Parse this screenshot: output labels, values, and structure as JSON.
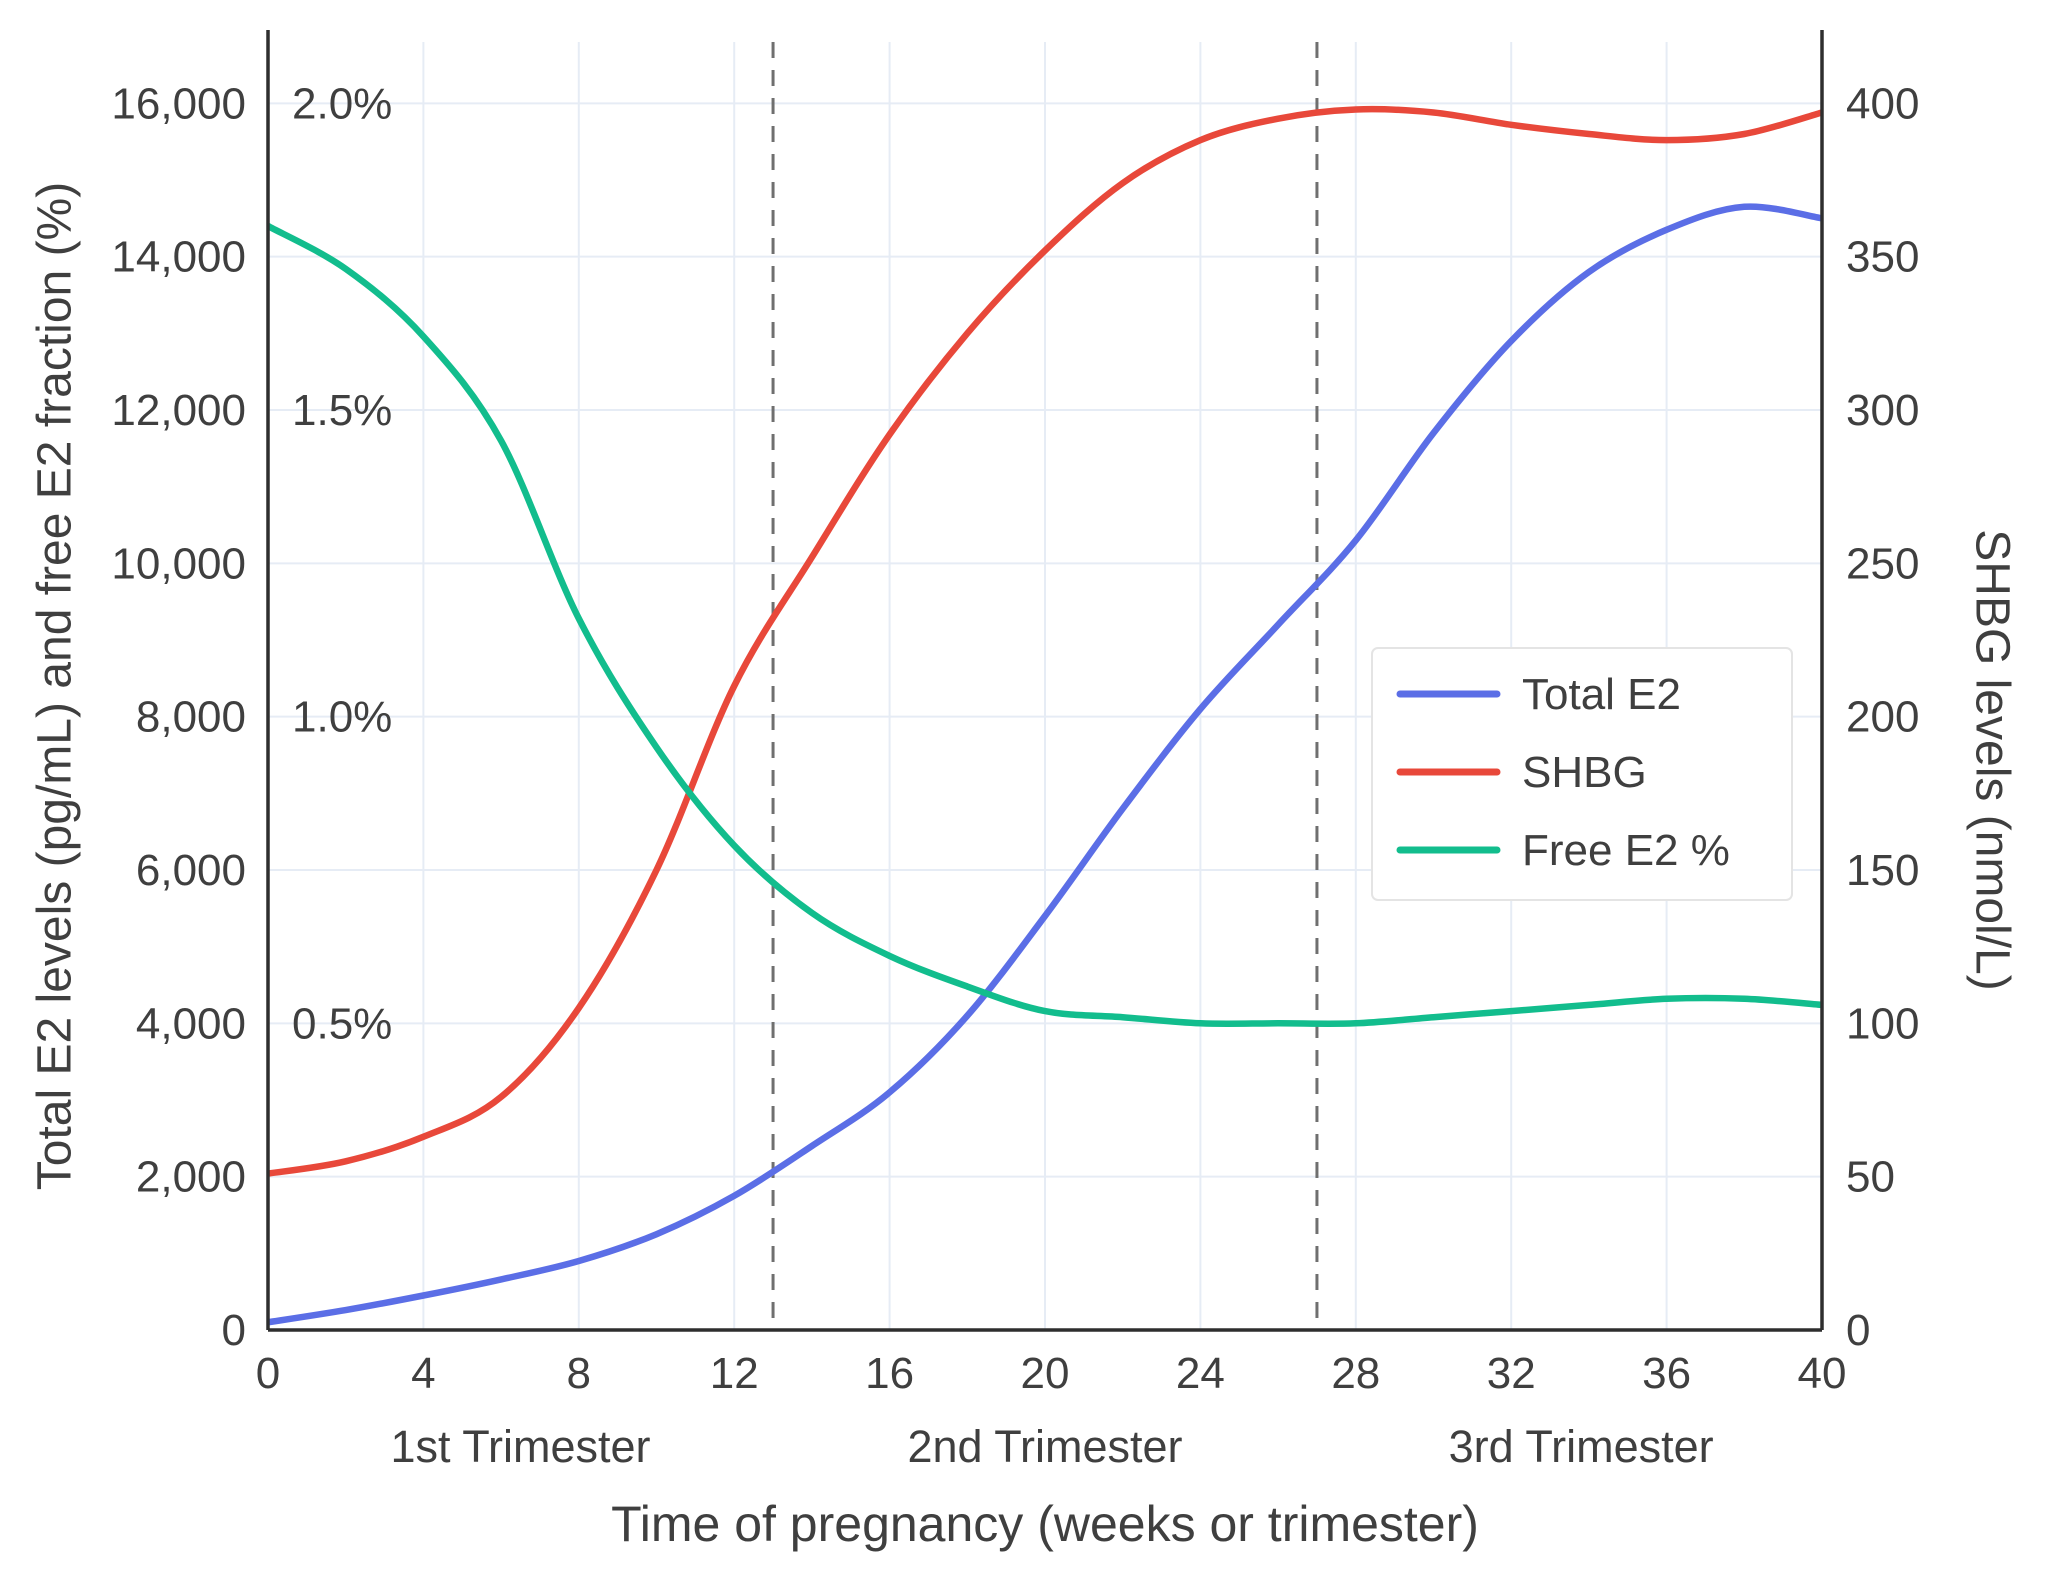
{
  "chart_data": {
    "type": "line",
    "xlabel": "Time of pregnancy (weeks or trimester)",
    "ylabel_left": "Total E2 levels (pg/mL) and free E2 fraction (%)",
    "ylabel_right": "SHBG levels (nmol/L)",
    "xlim": [
      0,
      40
    ],
    "ylim_left": [
      0,
      16800
    ],
    "ylim_right": [
      0,
      420
    ],
    "x_ticks": [
      0,
      4,
      8,
      12,
      16,
      20,
      24,
      28,
      32,
      36,
      40
    ],
    "y_ticks_left": [
      {
        "value": 0,
        "label": "0"
      },
      {
        "value": 2000,
        "label": "2,000"
      },
      {
        "value": 4000,
        "label": "4,000"
      },
      {
        "value": 6000,
        "label": "6,000"
      },
      {
        "value": 8000,
        "label": "8,000"
      },
      {
        "value": 10000,
        "label": "10,000"
      },
      {
        "value": 12000,
        "label": "12,000"
      },
      {
        "value": 14000,
        "label": "14,000"
      },
      {
        "value": 16000,
        "label": "16,000"
      }
    ],
    "y_ticks_right": [
      {
        "value": 0,
        "label": "0"
      },
      {
        "value": 50,
        "label": "50"
      },
      {
        "value": 100,
        "label": "100"
      },
      {
        "value": 150,
        "label": "150"
      },
      {
        "value": 200,
        "label": "200"
      },
      {
        "value": 250,
        "label": "250"
      },
      {
        "value": 300,
        "label": "300"
      },
      {
        "value": 350,
        "label": "350"
      },
      {
        "value": 400,
        "label": "400"
      }
    ],
    "percent_axis_labels": [
      {
        "label": "2.0%",
        "value": 16000
      },
      {
        "label": "1.5%",
        "value": 12000
      },
      {
        "label": "1.0%",
        "value": 8000
      },
      {
        "label": "0.5%",
        "value": 4000
      }
    ],
    "trimester_dividers_weeks": [
      13,
      27
    ],
    "trimester_labels": [
      {
        "label": "1st Trimester",
        "center_week": 6.5
      },
      {
        "label": "2nd Trimester",
        "center_week": 20
      },
      {
        "label": "3rd Trimester",
        "center_week": 33.8
      }
    ],
    "x": [
      0,
      2,
      4,
      6,
      8,
      10,
      12,
      14,
      16,
      18,
      20,
      22,
      24,
      26,
      28,
      30,
      32,
      34,
      36,
      38,
      40
    ],
    "series": [
      {
        "name": "Total E2",
        "axis": "left",
        "color": "#5b6ee6",
        "values": [
          100,
          260,
          450,
          660,
          900,
          1250,
          1750,
          2400,
          3100,
          4100,
          5400,
          6800,
          8100,
          9200,
          10300,
          11700,
          12900,
          13800,
          14350,
          14650,
          14500
        ]
      },
      {
        "name": "SHBG",
        "axis": "right",
        "color": "#e8483a",
        "values": [
          51,
          55,
          63,
          76,
          105,
          150,
          210,
          252,
          292,
          325,
          352,
          374,
          388,
          395,
          398,
          397,
          393,
          390,
          388,
          390,
          397
        ]
      },
      {
        "name": "Free E2 %",
        "axis": "percent",
        "color": "#12bd8d",
        "values": [
          1.8,
          1.73,
          1.62,
          1.45,
          1.16,
          0.95,
          0.79,
          0.68,
          0.61,
          0.56,
          0.52,
          0.51,
          0.5,
          0.5,
          0.5,
          0.51,
          0.52,
          0.53,
          0.54,
          0.54,
          0.53
        ]
      }
    ],
    "legend": {
      "position": "middle-right",
      "entries": [
        "Total E2",
        "SHBG",
        "Free E2 %"
      ]
    },
    "grid": true
  },
  "style": {
    "background": "#ffffff",
    "grid_color": "#e6ecf5",
    "axis_color": "#2e2e2e",
    "text_color": "#3f3f3f",
    "divider_color": "#6f6f6f",
    "legend_border_color": "#e4e4e4"
  }
}
